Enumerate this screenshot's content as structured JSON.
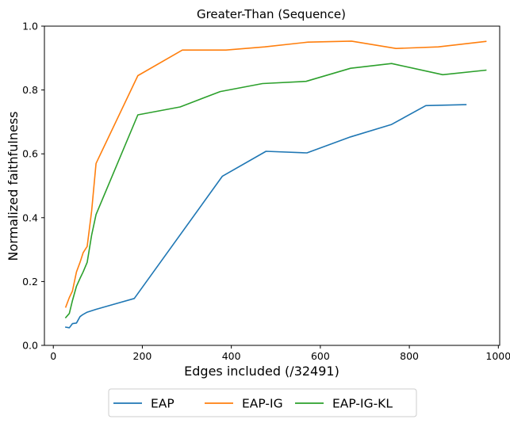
{
  "chart_data": {
    "type": "line",
    "title": "Greater-Than (Sequence)",
    "xlabel": "Edges included (/32491)",
    "ylabel": "Normalized faithfulness",
    "xlim": [
      -20,
      1003
    ],
    "ylim": [
      0.0,
      1.0
    ],
    "xticks": [
      0,
      200,
      400,
      600,
      800,
      1000
    ],
    "xtick_labels": [
      "0",
      "200",
      "400",
      "600",
      "800",
      "1000"
    ],
    "yticks": [
      0.0,
      0.2,
      0.4,
      0.6,
      0.8,
      1.0
    ],
    "ytick_labels": [
      "0.0",
      "0.2",
      "0.4",
      "0.6",
      "0.8",
      "1.0"
    ],
    "grid": false,
    "legend_position": "bottom-center",
    "series": [
      {
        "name": "EAP",
        "color": "#1f77b4",
        "x": [
          28,
          36,
          43,
          52,
          60,
          67,
          76,
          96,
          182,
          380,
          478,
          570,
          668,
          760,
          837,
          927
        ],
        "y": [
          0.057,
          0.055,
          0.068,
          0.07,
          0.09,
          0.097,
          0.104,
          0.113,
          0.147,
          0.53,
          0.608,
          0.603,
          0.653,
          0.692,
          0.751,
          0.754
        ]
      },
      {
        "name": "EAP-IG",
        "color": "#ff7f0e",
        "x": [
          28,
          36,
          43,
          52,
          60,
          67,
          76,
          86,
          96,
          190,
          290,
          388,
          475,
          572,
          670,
          770,
          865,
          972
        ],
        "y": [
          0.12,
          0.15,
          0.17,
          0.23,
          0.26,
          0.29,
          0.31,
          0.42,
          0.57,
          0.845,
          0.925,
          0.925,
          0.935,
          0.95,
          0.953,
          0.93,
          0.935,
          0.952
        ]
      },
      {
        "name": "EAP-IG-KL",
        "color": "#2ca02c",
        "x": [
          28,
          36,
          43,
          52,
          60,
          67,
          76,
          86,
          96,
          190,
          285,
          375,
          470,
          568,
          668,
          760,
          875,
          972
        ],
        "y": [
          0.087,
          0.1,
          0.14,
          0.185,
          0.21,
          0.23,
          0.26,
          0.345,
          0.41,
          0.722,
          0.747,
          0.795,
          0.82,
          0.827,
          0.868,
          0.883,
          0.848,
          0.862
        ]
      }
    ]
  }
}
